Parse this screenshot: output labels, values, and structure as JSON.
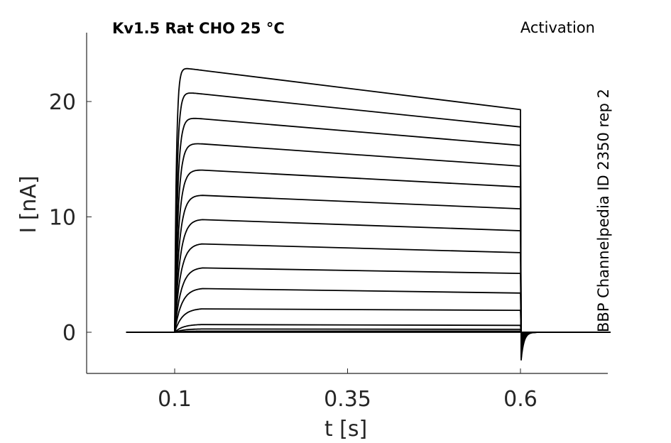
{
  "chart_data": {
    "type": "line",
    "title": "Kv1.5  Rat  CHO  25 °C",
    "protocol_label": "Activation",
    "side_label": "BBP Channelpedia ID 2350 rep 2",
    "xlabel": "t [s]",
    "ylabel": "I [nA]",
    "xlim": [
      0.0,
      0.7
    ],
    "ylim": [
      -3.5,
      26
    ],
    "xticks": [
      0.1,
      0.35,
      0.6
    ],
    "xtick_labels": [
      "0.1",
      "0.35",
      "0.6"
    ],
    "yticks": [
      0,
      10,
      20
    ],
    "ytick_labels": [
      "0",
      "10",
      "20"
    ],
    "grid": false,
    "legend": "none",
    "line_color": "#000000",
    "step_on": 0.1,
    "step_off": 0.6,
    "x_start": 0.03,
    "x_end": 0.73,
    "tail_min": -2.4,
    "series": [
      {
        "peak": 0.0,
        "end": 0.0
      },
      {
        "peak": 0.1,
        "end": 0.1
      },
      {
        "peak": 0.3,
        "end": 0.25
      },
      {
        "peak": 0.7,
        "end": 0.6
      },
      {
        "peak": 2.1,
        "end": 1.9
      },
      {
        "peak": 3.9,
        "end": 3.4
      },
      {
        "peak": 5.7,
        "end": 5.1
      },
      {
        "peak": 7.8,
        "end": 6.9
      },
      {
        "peak": 9.9,
        "end": 8.8
      },
      {
        "peak": 12.0,
        "end": 10.7
      },
      {
        "peak": 14.2,
        "end": 12.6
      },
      {
        "peak": 16.5,
        "end": 14.4
      },
      {
        "peak": 18.7,
        "end": 16.2
      },
      {
        "peak": 20.9,
        "end": 17.8
      },
      {
        "peak": 23.0,
        "end": 19.3
      }
    ]
  }
}
